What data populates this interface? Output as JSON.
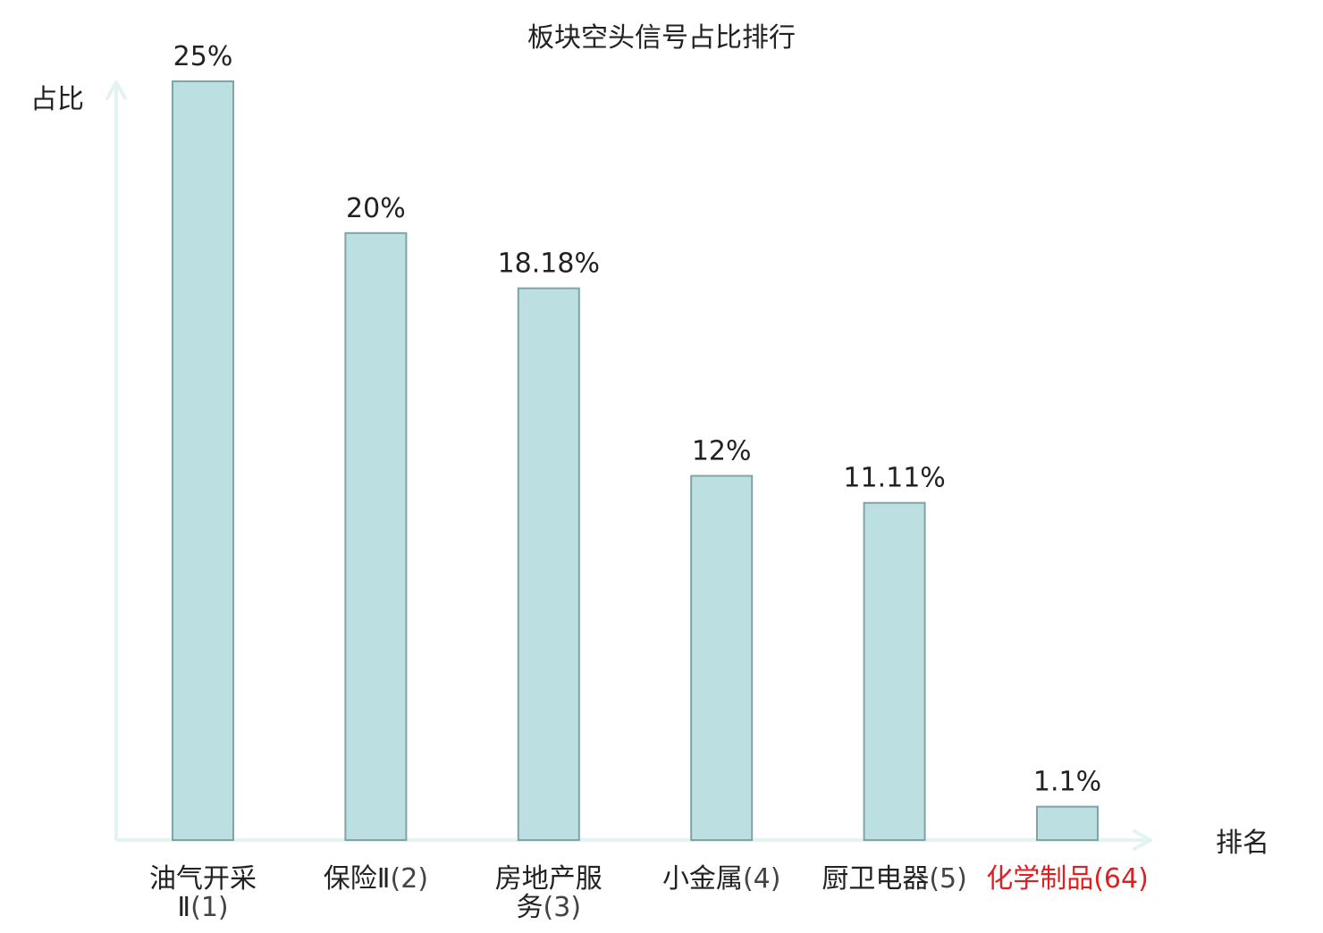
{
  "chart_data": {
    "type": "bar",
    "title": "板块空头信号占比排行",
    "xlabel": "排名",
    "ylabel": "占比",
    "ylim": [
      0,
      25
    ],
    "grid": false,
    "unit": "%",
    "categories": [
      {
        "name": "油气开采Ⅱ",
        "rank": "(1)",
        "highlight": false
      },
      {
        "name": "保险Ⅱ",
        "rank": "(2)",
        "highlight": false
      },
      {
        "name": "房地产服务",
        "rank": "(3)",
        "highlight": false
      },
      {
        "name": "小金属",
        "rank": "(4)",
        "highlight": false
      },
      {
        "name": "厨卫电器",
        "rank": "(5)",
        "highlight": false
      },
      {
        "name": "化学制品",
        "rank": "(64)",
        "highlight": true
      }
    ],
    "values": [
      25,
      20,
      18.18,
      12,
      11.11,
      1.1
    ],
    "value_labels": [
      "25%",
      "20%",
      "18.18%",
      "12%",
      "11.11%",
      "1.1%"
    ],
    "colors": {
      "bar_fill": "#bce0e2",
      "bar_stroke": "#7fa3a6",
      "axis": "#e3f3f1",
      "text": "#222222",
      "highlight": "#e02020",
      "rank_text": "#444444"
    }
  }
}
